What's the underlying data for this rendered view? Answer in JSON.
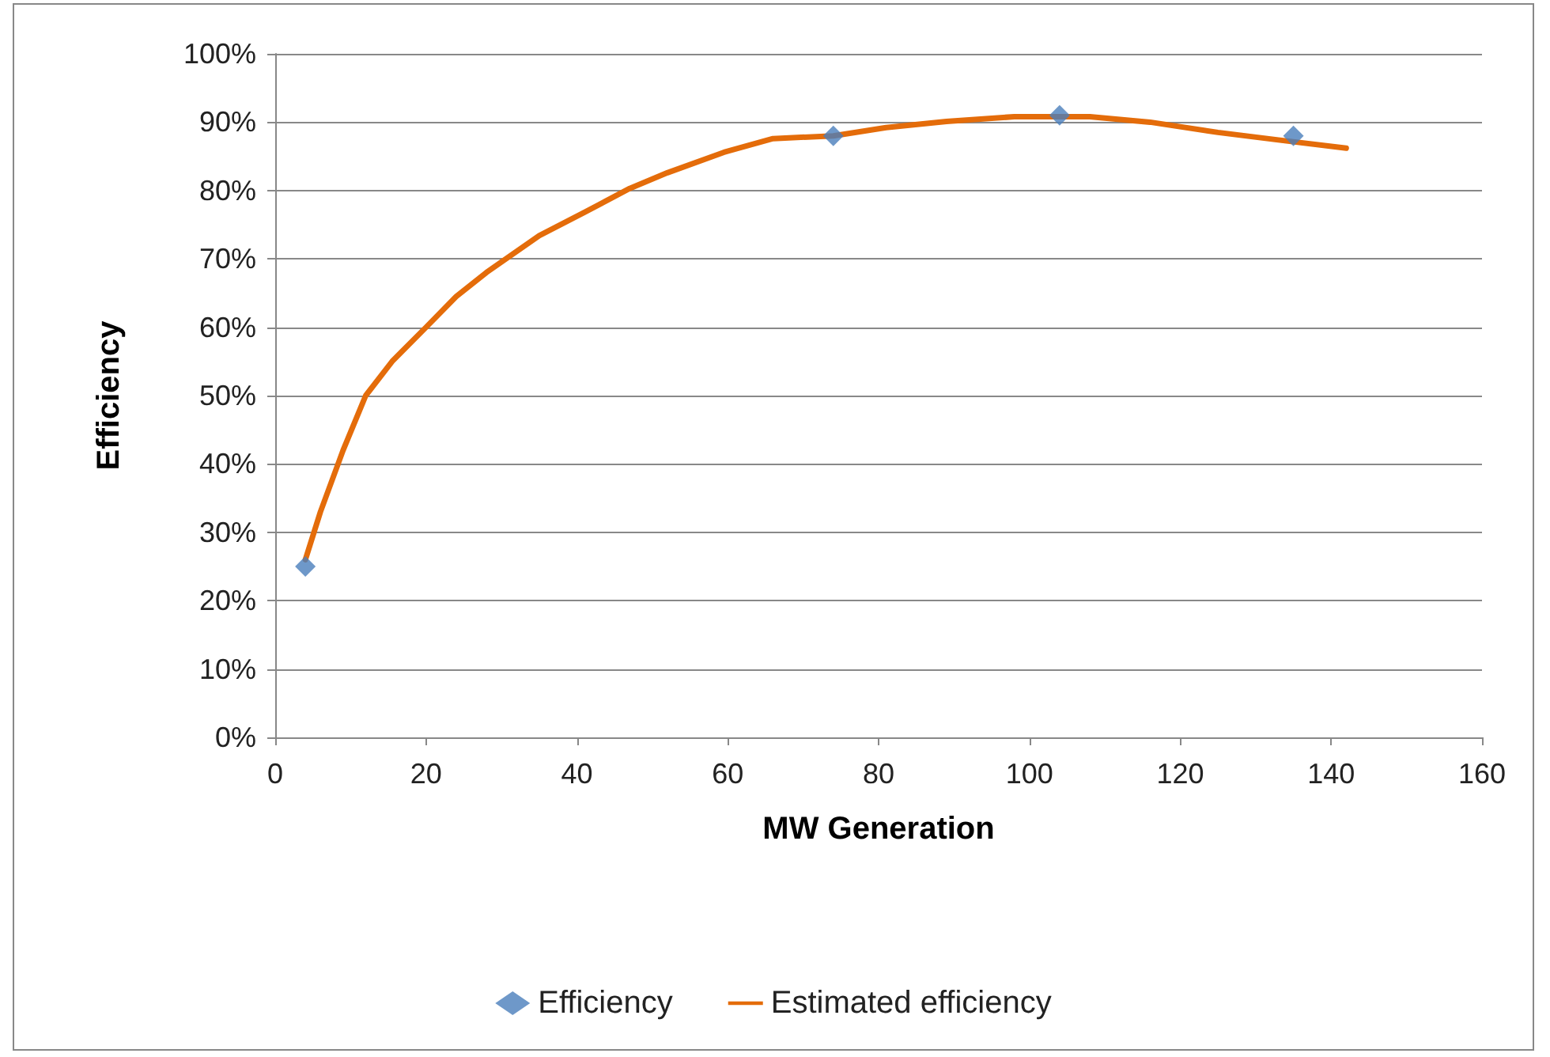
{
  "chart_data": {
    "type": "scatter",
    "xlabel": "MW Generation",
    "ylabel": "Efficiency",
    "xlim": [
      0,
      160
    ],
    "xticks": [
      0,
      20,
      40,
      60,
      80,
      100,
      120,
      140,
      160
    ],
    "ylim": [
      0,
      1
    ],
    "yticks": [
      {
        "value": 0,
        "label": "0%"
      },
      {
        "value": 0.1,
        "label": "10%"
      },
      {
        "value": 0.2,
        "label": "20%"
      },
      {
        "value": 0.3,
        "label": "30%"
      },
      {
        "value": 0.4,
        "label": "40%"
      },
      {
        "value": 0.5,
        "label": "50%"
      },
      {
        "value": 0.6,
        "label": "60%"
      },
      {
        "value": 0.7,
        "label": "70%"
      },
      {
        "value": 0.8,
        "label": "80%"
      },
      {
        "value": 0.9,
        "label": "90%"
      },
      {
        "value": 1,
        "label": "100%"
      }
    ],
    "grid": "y",
    "legend": "bottom",
    "series": [
      {
        "name": "Efficiency",
        "marker": "diamond",
        "color": "#4a7ebb",
        "x": [
          4,
          74,
          104,
          135
        ],
        "values": [
          0.25,
          0.88,
          0.91,
          0.88
        ]
      },
      {
        "name": "Estimated efficiency",
        "type": "line",
        "marker": "none",
        "line_style": "solid",
        "color": "#e46c0a",
        "x": [
          4,
          6,
          9,
          12,
          15.5,
          20,
          24,
          28,
          35,
          41,
          47,
          52,
          59.5,
          66,
          74,
          81,
          89,
          98,
          108,
          116,
          125,
          133,
          142
        ],
        "values": [
          0.26,
          0.33,
          0.42,
          0.5,
          0.55,
          0.6,
          0.645,
          0.68,
          0.734,
          0.768,
          0.803,
          0.826,
          0.856,
          0.876,
          0.88,
          0.892,
          0.901,
          0.908,
          0.908,
          0.9,
          0.885,
          0.874,
          0.862
        ]
      }
    ]
  }
}
